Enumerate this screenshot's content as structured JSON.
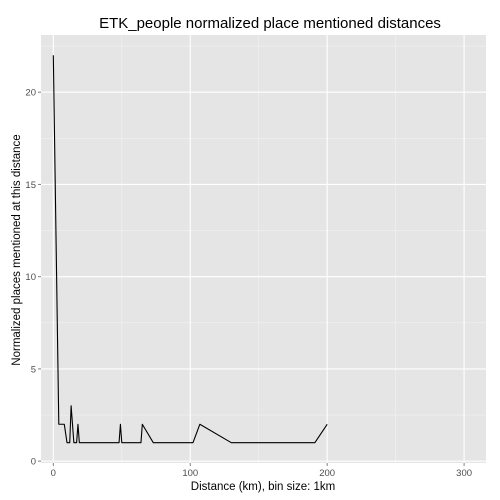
{
  "chart_data": {
    "type": "line",
    "title": "ETK_people normalized place mentioned distances",
    "xlabel": "Distance (km), bin size: 1km",
    "ylabel": "Normalized places mentioned at this distance",
    "xlim": [
      -9,
      316
    ],
    "ylim": [
      -0.1,
      23.1
    ],
    "x_ticks": [
      0,
      100,
      200,
      300
    ],
    "x_tick_labels": [
      "0",
      "100",
      "200",
      "300"
    ],
    "y_ticks": [
      0,
      5,
      10,
      15,
      20
    ],
    "y_tick_labels": [
      "0",
      "5",
      "10",
      "15",
      "20"
    ],
    "grid": true,
    "background": "#e5e5e5",
    "grid_color": "#ffffff",
    "line_color": "#000000",
    "x": [
      0,
      4,
      8,
      10,
      12,
      13,
      15,
      17,
      18,
      19,
      20,
      48,
      49,
      50,
      64,
      65,
      73,
      102,
      107,
      130,
      191,
      200
    ],
    "y": [
      22,
      2,
      2,
      1,
      1,
      3,
      1,
      1,
      2,
      1,
      1,
      1,
      2,
      1,
      1,
      2,
      1,
      1,
      2,
      1,
      1,
      2
    ]
  }
}
